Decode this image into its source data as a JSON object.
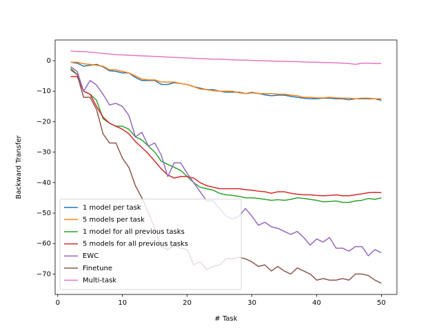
{
  "chart_data": {
    "type": "line",
    "x_label": "# Task",
    "y_label": "Backward Transfer",
    "x": [
      2,
      3,
      4,
      5,
      6,
      7,
      8,
      9,
      10,
      11,
      12,
      13,
      14,
      15,
      16,
      17,
      18,
      19,
      20,
      21,
      22,
      23,
      24,
      25,
      26,
      27,
      28,
      29,
      30,
      31,
      32,
      33,
      34,
      35,
      36,
      37,
      38,
      39,
      40,
      41,
      42,
      43,
      44,
      45,
      46,
      47,
      48,
      49,
      50
    ],
    "xlim": [
      -0.4,
      52.4
    ],
    "xticks": [
      0,
      10,
      20,
      30,
      40,
      50
    ],
    "ylim": [
      -76.7,
      6.8
    ],
    "yticks": [
      {
        "value": 0,
        "label": "0"
      },
      {
        "value": -10,
        "label": "−10"
      },
      {
        "value": -20,
        "label": "−20"
      },
      {
        "value": -30,
        "label": "−30"
      },
      {
        "value": -40,
        "label": "−40"
      },
      {
        "value": -50,
        "label": "−50"
      },
      {
        "value": -60,
        "label": "−60"
      },
      {
        "value": -70,
        "label": "−70"
      }
    ],
    "legend": "lower left",
    "series": [
      {
        "name": "1 model per task",
        "color": "#1f77b4",
        "values": [
          -0.5,
          -0.8,
          -1.8,
          -1.5,
          -1.2,
          -2,
          -3.3,
          -3.5,
          -4,
          -4,
          -5.5,
          -6.5,
          -6.5,
          -6.5,
          -7.8,
          -7.8,
          -7.2,
          -7.5,
          -7.8,
          -8.5,
          -9,
          -9.5,
          -9.5,
          -10,
          -10.3,
          -10.3,
          -10.3,
          -10.8,
          -10.5,
          -10.7,
          -11.2,
          -11.5,
          -11.3,
          -11.3,
          -11.7,
          -12,
          -12.3,
          -12.5,
          -12.5,
          -12.3,
          -12.3,
          -12.5,
          -12.5,
          -12.8,
          -12.5,
          -12.5,
          -12.5,
          -12.5,
          -13
        ]
      },
      {
        "name": "5 models per task",
        "color": "#ff7f0e",
        "values": [
          -0.5,
          -0.5,
          -1,
          -1.2,
          -1.5,
          -1.8,
          -3,
          -3,
          -3.5,
          -4,
          -5,
          -6,
          -6.3,
          -6.3,
          -7,
          -7,
          -7,
          -7.5,
          -7.8,
          -8.5,
          -9.3,
          -9.5,
          -9.8,
          -10,
          -10,
          -10,
          -10.5,
          -10.8,
          -10.3,
          -10.8,
          -10.8,
          -10.8,
          -11,
          -11,
          -11.3,
          -11.5,
          -12,
          -12,
          -12.2,
          -12.2,
          -12,
          -12.2,
          -12.3,
          -12.3,
          -12.5,
          -12.3,
          -12.3,
          -12.5,
          -12.5
        ]
      },
      {
        "name": "1 model for all previous tasks",
        "color": "#2ca02c",
        "values": [
          -2.5,
          -4.5,
          -10,
          -11,
          -13,
          -19,
          -20.5,
          -21.5,
          -21.5,
          -22.5,
          -25,
          -26,
          -28,
          -30,
          -33,
          -34,
          -35,
          -36,
          -38,
          -40,
          -41.5,
          -42,
          -42.5,
          -43.5,
          -44,
          -44.2,
          -44.5,
          -45,
          -45,
          -45.2,
          -45.5,
          -45.8,
          -45.6,
          -45.8,
          -45.5,
          -45,
          -45.2,
          -45.5,
          -45.8,
          -46.3,
          -46.2,
          -46,
          -46.5,
          -46.5,
          -46,
          -45.8,
          -45.2,
          -45.5,
          -45
        ]
      },
      {
        "name": "5 models for all previous tasks",
        "color": "#d62728",
        "values": [
          -5.2,
          -5.2,
          -10,
          -11,
          -15,
          -18.5,
          -20.5,
          -21.5,
          -22.5,
          -24,
          -26.5,
          -28.5,
          -30.5,
          -33,
          -35.5,
          -37.5,
          -38.5,
          -38,
          -38,
          -38.5,
          -40,
          -41,
          -41.5,
          -42,
          -42,
          -42,
          -42,
          -42.3,
          -42.5,
          -42.8,
          -43,
          -43.5,
          -43,
          -43,
          -43.5,
          -43.8,
          -44,
          -44,
          -44.2,
          -44.3,
          -44.2,
          -44,
          -44.3,
          -44.3,
          -44,
          -43.7,
          -43.3,
          -43.2,
          -43.3
        ]
      },
      {
        "name": "EWC",
        "color": "#9467bd",
        "values": [
          -2,
          -3.5,
          -10,
          -6.5,
          -8,
          -11,
          -14.5,
          -14,
          -15,
          -18,
          -25,
          -23.5,
          -28,
          -27,
          -31,
          -38,
          -33.5,
          -33.5,
          -37,
          -40,
          -43,
          -46,
          -46,
          -48.5,
          -51,
          -52,
          -51,
          -48.5,
          -51,
          -54,
          -53,
          -54.5,
          -55,
          -56,
          -57,
          -56,
          -58,
          -60.5,
          -58.5,
          -59.5,
          -58,
          -61.5,
          -61.5,
          -62.5,
          -61,
          -61,
          -64,
          -62,
          -63
        ]
      },
      {
        "name": "Finetune",
        "color": "#8c564b",
        "values": [
          -3,
          -4.5,
          -12,
          -12,
          -16,
          -24,
          -27,
          -27,
          -32,
          -35,
          -41,
          -45,
          -50,
          -55,
          -61,
          -62,
          -60.5,
          -61.5,
          -62,
          -67,
          -66,
          -68.5,
          -67.5,
          -67,
          -65,
          -65,
          -64.5,
          -65,
          -66,
          -67.5,
          -67,
          -69,
          -67.5,
          -69,
          -70,
          -68,
          -69,
          -70,
          -72,
          -71.5,
          -72,
          -72,
          -71.5,
          -72,
          -70,
          -70,
          -70.5,
          -72,
          -73
        ]
      },
      {
        "name": "Multi-task",
        "color": "#e377c2",
        "values": [
          3.2,
          3,
          3,
          2.8,
          2.6,
          2.4,
          2.2,
          2,
          1.9,
          1.8,
          1.7,
          1.6,
          1.5,
          1.4,
          1.3,
          1.2,
          1.1,
          1,
          0.9,
          0.8,
          0.7,
          0.6,
          0.5,
          0.5,
          0.4,
          0.3,
          0.2,
          0.2,
          0.1,
          0,
          0,
          -0.1,
          -0.2,
          -0.2,
          -0.3,
          -0.3,
          -0.4,
          -0.5,
          -0.5,
          -0.6,
          -0.6,
          -0.7,
          -0.8,
          -0.9,
          -1.2,
          -0.8,
          -0.8,
          -0.9,
          -0.9
        ]
      }
    ]
  }
}
